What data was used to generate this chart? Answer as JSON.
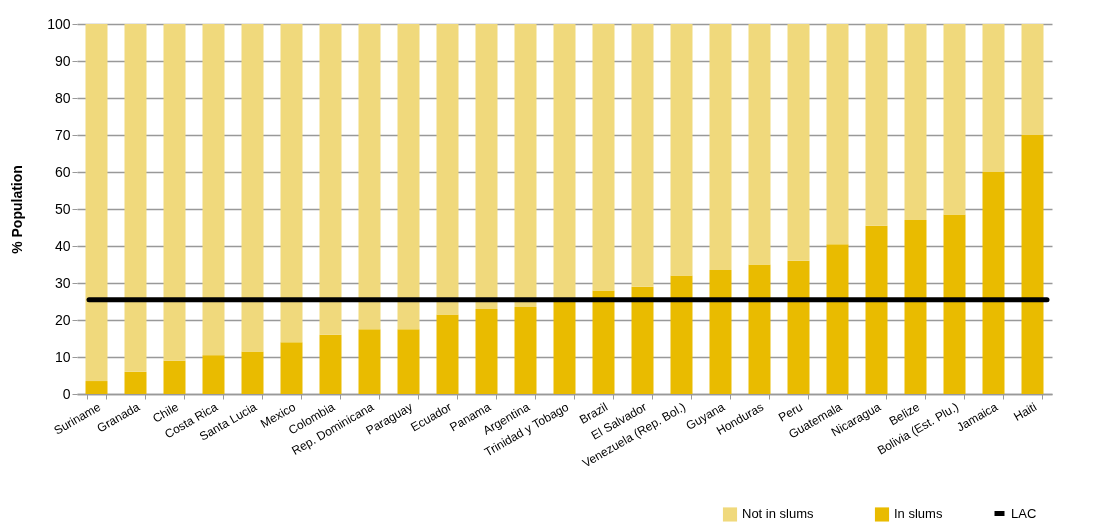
{
  "chart_data": {
    "type": "bar",
    "ylabel": "% Population",
    "stacked": true,
    "categories": [
      "Suriname",
      "Granada",
      "Chile",
      "Costa Rica",
      "Santa Lucia",
      "Mexico",
      "Colombia",
      "Rep. Dominicana",
      "Paraguay",
      "Ecuador",
      "Panama",
      "Argentina",
      "Trinidad y Tobago",
      "Brazil",
      "El Salvador",
      "Venezuela (Rep. Bol.)",
      "Guyana",
      "Honduras",
      "Peru",
      "Guatemala",
      "Nicaragua",
      "Belize",
      "Bolivia (Est. Plu.)",
      "Jamaica",
      "Haiti"
    ],
    "series": [
      {
        "name": "In slums",
        "color": "#e9bb00",
        "values": [
          3.5,
          6,
          9,
          10.5,
          11.5,
          14,
          16,
          17.5,
          17.5,
          21.5,
          23,
          23.5,
          25,
          28,
          29,
          32,
          33.5,
          35,
          36,
          40.5,
          45.5,
          47,
          48.5,
          60,
          70
        ]
      },
      {
        "name": "Not in slums",
        "color": "#f0d97c",
        "values": [
          96.5,
          94,
          91,
          89.5,
          88.5,
          86,
          84,
          82.5,
          82.5,
          78.5,
          77,
          76.5,
          75,
          72,
          71,
          68,
          66.5,
          65,
          64,
          59.5,
          54.5,
          53,
          51.5,
          40,
          30
        ]
      }
    ],
    "ref_lines": [
      {
        "axis": "y",
        "value": 25.5,
        "label": "LAC",
        "color": "#000000"
      }
    ],
    "ylim": [
      0,
      100
    ],
    "yticks": [
      0,
      10,
      20,
      30,
      40,
      50,
      60,
      70,
      80,
      90,
      100
    ],
    "grid": "y",
    "legend": "bottom right"
  }
}
